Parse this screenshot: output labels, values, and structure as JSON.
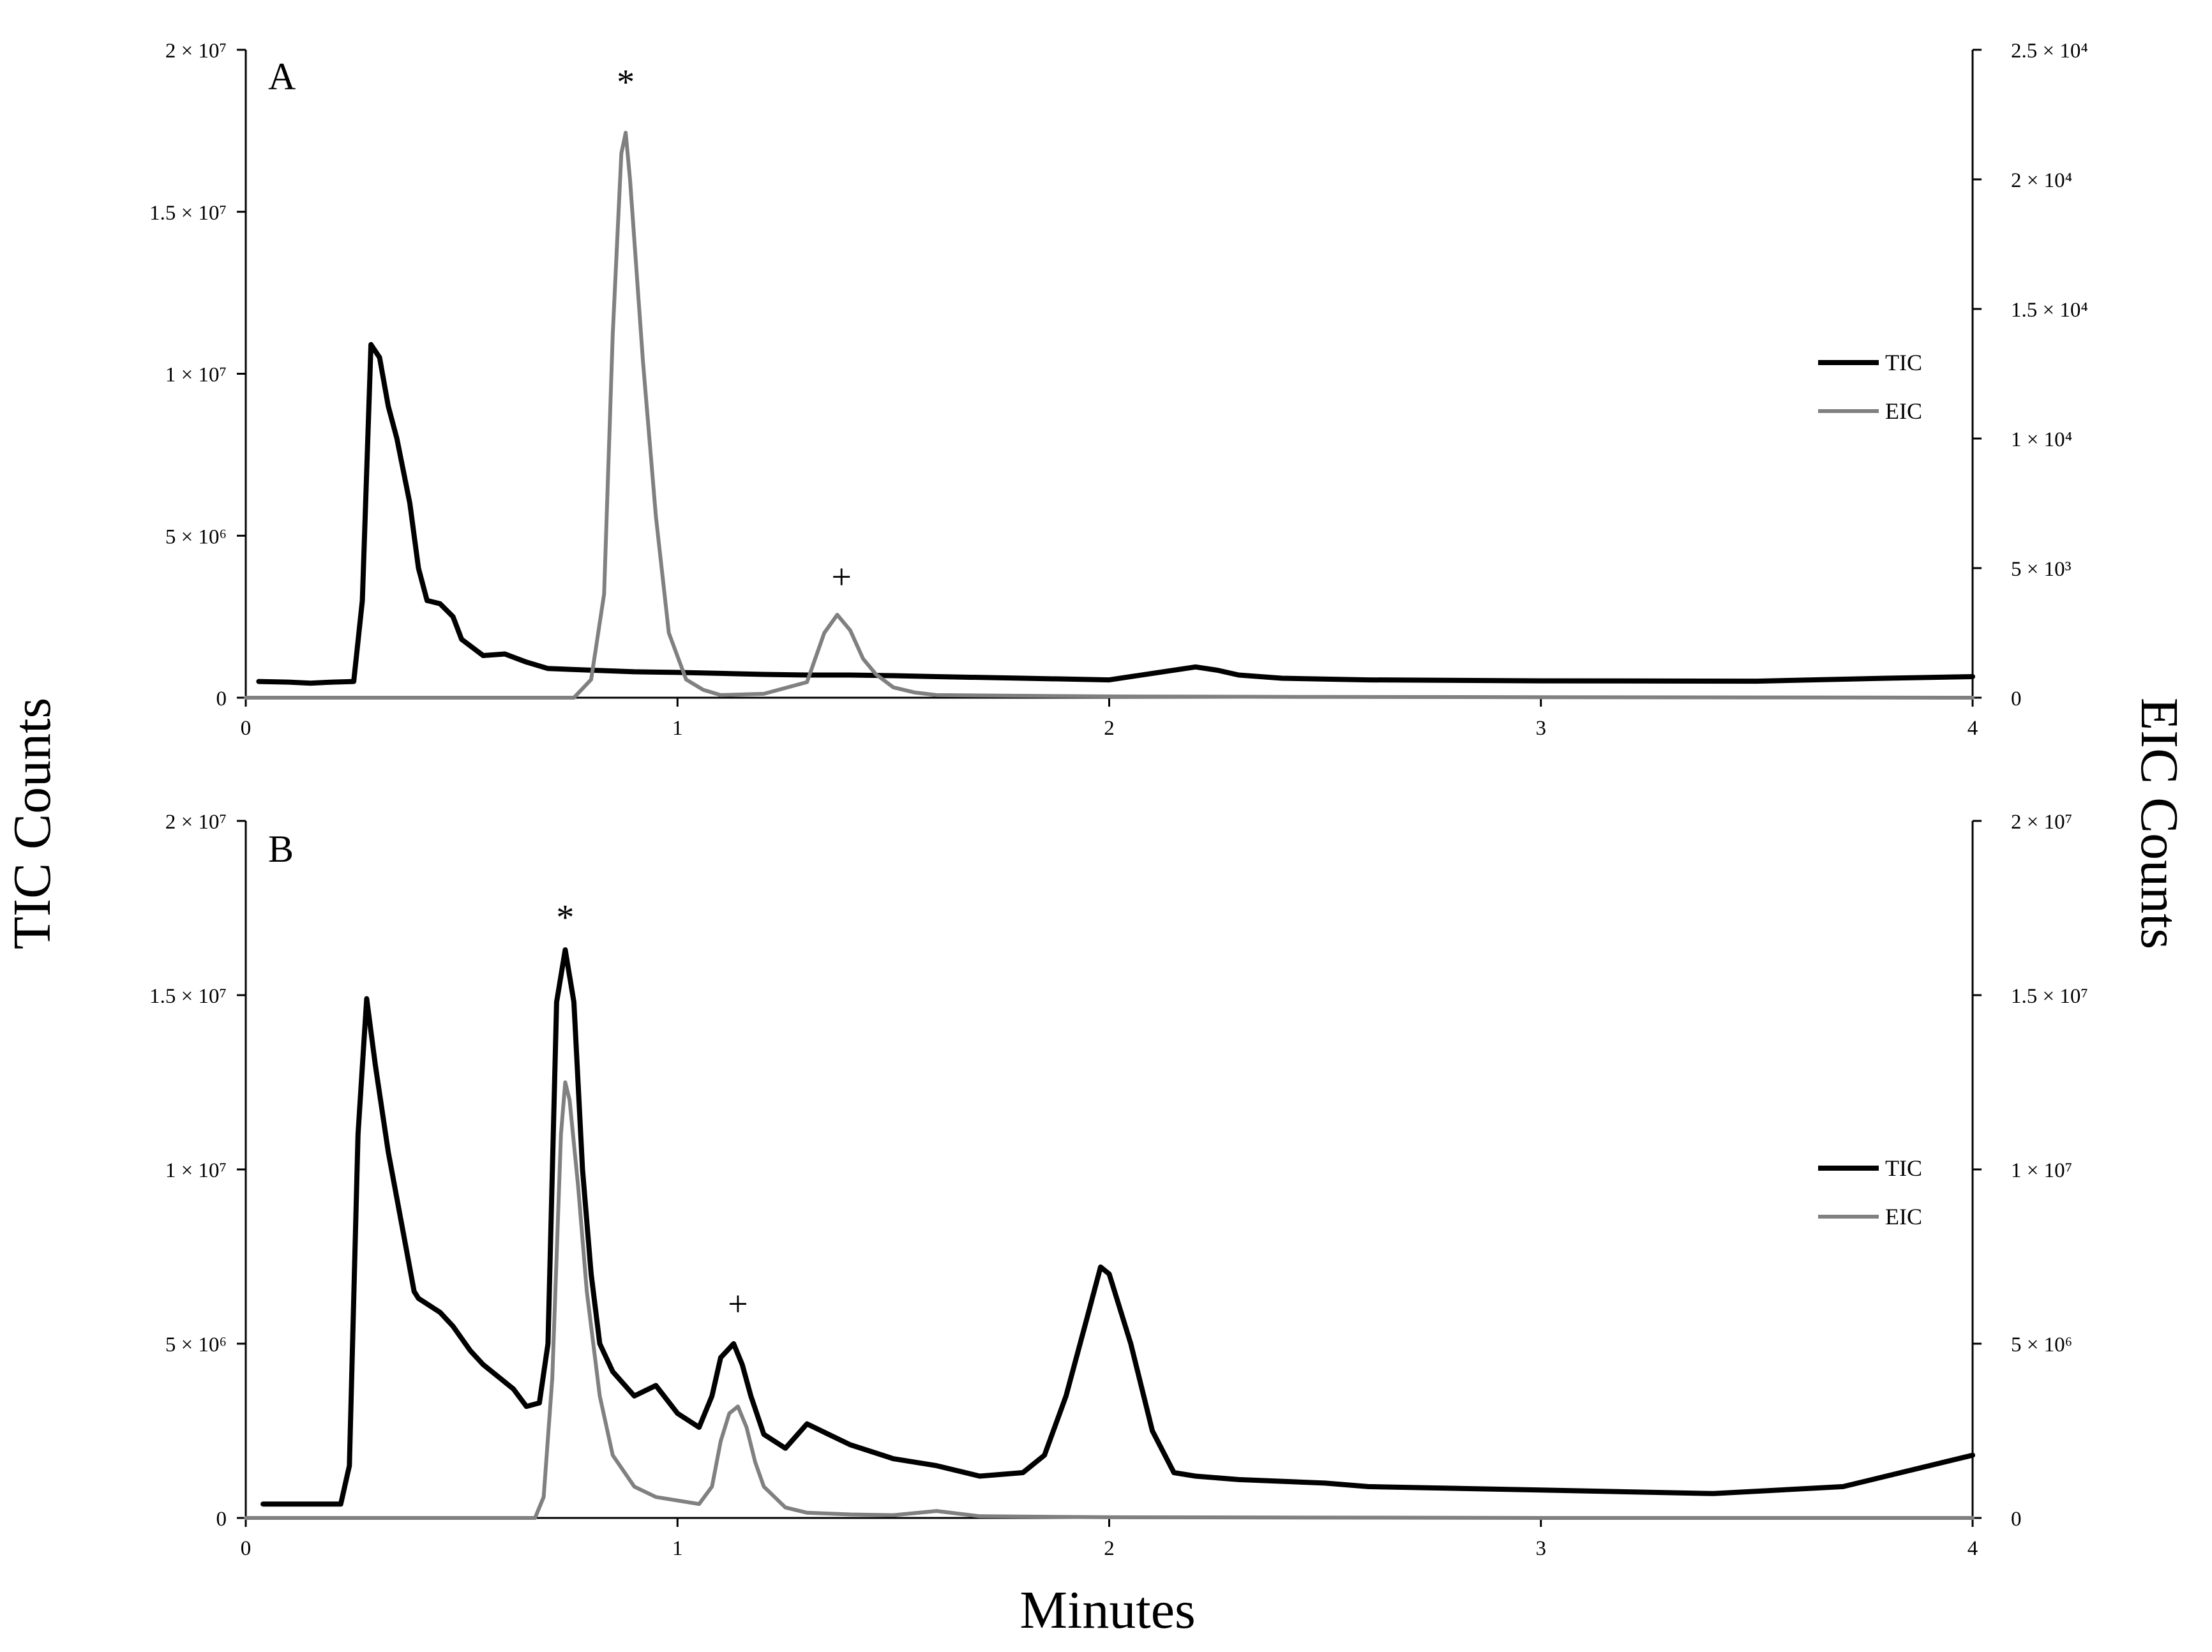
{
  "figure": {
    "x_axis_title": "Minutes",
    "left_axis_title": "TIC Counts",
    "right_axis_title": "EIC Counts"
  },
  "chart_data": [
    {
      "type": "line",
      "panel": "A",
      "xlabel": "Minutes",
      "ylabel": "TIC Counts",
      "y2label": "EIC Counts",
      "xlim": [
        0,
        4
      ],
      "ylim": [
        0,
        20000000
      ],
      "y2lim": [
        0,
        25000
      ],
      "x_ticks": [
        "0",
        "1",
        "2",
        "3",
        "4"
      ],
      "y_ticks": [
        "0",
        "5 × 10⁶",
        "1 × 10⁷",
        "1.5 × 10⁷",
        "2 × 10⁷"
      ],
      "y_tick_values": [
        0,
        5000000,
        10000000,
        15000000,
        20000000
      ],
      "y2_ticks": [
        "0",
        "5 × 10³",
        "1 × 10⁴",
        "1.5 × 10⁴",
        "2 × 10⁴",
        "2.5 × 10⁴"
      ],
      "y2_tick_values": [
        0,
        5000,
        10000,
        15000,
        20000,
        25000
      ],
      "legend": [
        "TIC",
        "EIC"
      ],
      "legend_position": "right",
      "annotations": [
        {
          "text": "*",
          "x": 0.88,
          "y2": 23300
        },
        {
          "text": "+",
          "x": 1.38,
          "y2": 4200
        }
      ],
      "series": [
        {
          "name": "TIC",
          "axis": "left",
          "color": "#000000",
          "x": [
            0.03,
            0.1,
            0.15,
            0.2,
            0.25,
            0.27,
            0.29,
            0.31,
            0.33,
            0.35,
            0.38,
            0.4,
            0.42,
            0.45,
            0.48,
            0.5,
            0.55,
            0.6,
            0.65,
            0.7,
            0.8,
            0.9,
            1.0,
            1.1,
            1.2,
            1.3,
            1.4,
            1.5,
            1.6,
            1.8,
            2.0,
            2.1,
            2.2,
            2.25,
            2.3,
            2.4,
            2.6,
            3.0,
            3.5,
            3.8,
            4.0
          ],
          "y": [
            500000,
            480000,
            450000,
            480000,
            500000,
            3000000,
            10900000,
            10500000,
            9000000,
            8000000,
            6000000,
            4000000,
            3000000,
            2900000,
            2500000,
            1800000,
            1300000,
            1350000,
            1100000,
            900000,
            850000,
            800000,
            780000,
            750000,
            720000,
            700000,
            700000,
            680000,
            650000,
            600000,
            550000,
            750000,
            950000,
            850000,
            700000,
            600000,
            550000,
            520000,
            510000,
            600000,
            650000
          ]
        },
        {
          "name": "EIC",
          "axis": "right",
          "color": "#808080",
          "x": [
            0.0,
            0.7,
            0.76,
            0.8,
            0.83,
            0.85,
            0.87,
            0.88,
            0.89,
            0.92,
            0.95,
            0.98,
            1.02,
            1.06,
            1.1,
            1.2,
            1.3,
            1.34,
            1.37,
            1.4,
            1.43,
            1.46,
            1.5,
            1.55,
            1.6,
            2.0,
            2.5,
            3.0,
            3.5,
            4.0
          ],
          "y": [
            0,
            0,
            0,
            700,
            4000,
            14000,
            21000,
            21800,
            20000,
            13000,
            7000,
            2500,
            700,
            300,
            100,
            150,
            600,
            2500,
            3200,
            2600,
            1500,
            900,
            400,
            200,
            100,
            50,
            30,
            20,
            10,
            0
          ]
        }
      ]
    },
    {
      "type": "line",
      "panel": "B",
      "xlabel": "Minutes",
      "ylabel": "TIC Counts",
      "y2label": "EIC Counts",
      "xlim": [
        0,
        4
      ],
      "ylim": [
        0,
        20000000
      ],
      "y2lim": [
        0,
        20000000
      ],
      "x_ticks": [
        "0",
        "1",
        "2",
        "3",
        "4"
      ],
      "y_ticks": [
        "0",
        "5 × 10⁶",
        "1 × 10⁷",
        "1.5 × 10⁷",
        "2 × 10⁷"
      ],
      "y_tick_values": [
        0,
        5000000,
        10000000,
        15000000,
        20000000
      ],
      "y2_ticks": [
        "0",
        "5 × 10⁶",
        "1 × 10⁷",
        "1.5 × 10⁷",
        "2 × 10⁷"
      ],
      "y2_tick_values": [
        0,
        5000000,
        10000000,
        15000000,
        20000000
      ],
      "legend": [
        "TIC",
        "EIC"
      ],
      "legend_position": "right",
      "annotations": [
        {
          "text": "*",
          "x": 0.74,
          "y": 16900000
        },
        {
          "text": "+",
          "x": 1.14,
          "y": 5800000
        }
      ],
      "series": [
        {
          "name": "TIC",
          "axis": "left",
          "color": "#000000",
          "x": [
            0.04,
            0.15,
            0.22,
            0.24,
            0.26,
            0.28,
            0.3,
            0.33,
            0.36,
            0.39,
            0.4,
            0.45,
            0.48,
            0.52,
            0.55,
            0.58,
            0.62,
            0.65,
            0.68,
            0.7,
            0.72,
            0.74,
            0.76,
            0.78,
            0.8,
            0.82,
            0.85,
            0.9,
            0.95,
            1.0,
            1.05,
            1.08,
            1.1,
            1.13,
            1.15,
            1.17,
            1.2,
            1.25,
            1.3,
            1.35,
            1.4,
            1.5,
            1.6,
            1.7,
            1.8,
            1.85,
            1.9,
            1.95,
            1.98,
            2.0,
            2.05,
            2.1,
            2.15,
            2.2,
            2.3,
            2.5,
            2.6,
            3.0,
            3.4,
            3.7,
            4.0
          ],
          "y": [
            400000,
            400000,
            400000,
            1500000,
            11000000,
            14900000,
            13000000,
            10500000,
            8500000,
            6500000,
            6300000,
            5900000,
            5500000,
            4800000,
            4400000,
            4100000,
            3700000,
            3200000,
            3300000,
            5000000,
            14800000,
            16300000,
            14800000,
            10000000,
            7000000,
            5000000,
            4200000,
            3500000,
            3800000,
            3000000,
            2600000,
            3500000,
            4600000,
            5000000,
            4400000,
            3500000,
            2400000,
            2000000,
            2700000,
            2400000,
            2100000,
            1700000,
            1500000,
            1200000,
            1300000,
            1800000,
            3500000,
            5800000,
            7200000,
            7000000,
            5000000,
            2500000,
            1300000,
            1200000,
            1100000,
            1000000,
            900000,
            800000,
            700000,
            900000,
            1800000
          ]
        },
        {
          "name": "EIC",
          "axis": "right",
          "color": "#808080",
          "x": [
            0.0,
            0.67,
            0.69,
            0.71,
            0.73,
            0.74,
            0.75,
            0.77,
            0.79,
            0.82,
            0.85,
            0.9,
            0.95,
            1.0,
            1.05,
            1.08,
            1.1,
            1.12,
            1.14,
            1.16,
            1.18,
            1.2,
            1.25,
            1.3,
            1.4,
            1.5,
            1.6,
            1.7,
            2.0,
            2.6,
            3.0,
            4.0
          ],
          "y": [
            0,
            0,
            600000,
            4000000,
            11000000,
            12500000,
            12000000,
            9500000,
            6500000,
            3500000,
            1800000,
            900000,
            600000,
            500000,
            400000,
            900000,
            2200000,
            3000000,
            3200000,
            2600000,
            1600000,
            900000,
            300000,
            150000,
            100000,
            80000,
            200000,
            50000,
            20000,
            10000,
            0,
            0
          ]
        }
      ]
    }
  ]
}
